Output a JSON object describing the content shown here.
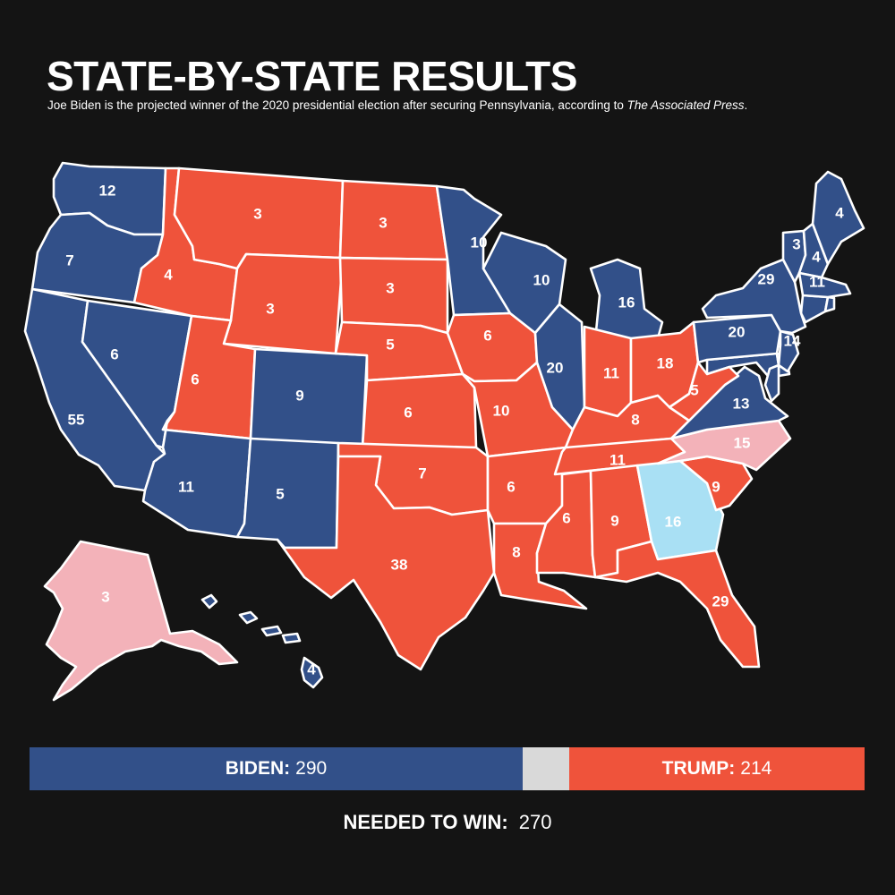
{
  "title": "STATE-BY-STATE RESULTS",
  "subtitle": {
    "text": "Joe Biden is the projected winner of the 2020 presidential election after securing Pennsylvania, according to ",
    "source": "The Associated Press",
    "end": "."
  },
  "colors": {
    "biden": "#325089",
    "trump": "#ef533b",
    "lean_trump": "#f3b2b9",
    "lean_biden": "#a9e0f4",
    "undecided": "#d9d9d9",
    "background": "#141414"
  },
  "states": [
    {
      "id": "WA",
      "ev": "12",
      "party": "biden"
    },
    {
      "id": "OR",
      "ev": "7",
      "party": "biden"
    },
    {
      "id": "CA",
      "ev": "55",
      "party": "biden"
    },
    {
      "id": "NV",
      "ev": "6",
      "party": "biden"
    },
    {
      "id": "ID",
      "ev": "4",
      "party": "trump"
    },
    {
      "id": "MT",
      "ev": "3",
      "party": "trump"
    },
    {
      "id": "WY",
      "ev": "3",
      "party": "trump"
    },
    {
      "id": "UT",
      "ev": "6",
      "party": "trump"
    },
    {
      "id": "AZ",
      "ev": "11",
      "party": "biden"
    },
    {
      "id": "CO",
      "ev": "9",
      "party": "biden"
    },
    {
      "id": "NM",
      "ev": "5",
      "party": "biden"
    },
    {
      "id": "ND",
      "ev": "3",
      "party": "trump"
    },
    {
      "id": "SD",
      "ev": "3",
      "party": "trump"
    },
    {
      "id": "NE",
      "ev": "5",
      "party": "trump"
    },
    {
      "id": "KS",
      "ev": "6",
      "party": "trump"
    },
    {
      "id": "OK",
      "ev": "7",
      "party": "trump"
    },
    {
      "id": "TX",
      "ev": "38",
      "party": "trump"
    },
    {
      "id": "MN",
      "ev": "10",
      "party": "biden"
    },
    {
      "id": "IA",
      "ev": "6",
      "party": "trump"
    },
    {
      "id": "MO",
      "ev": "10",
      "party": "trump"
    },
    {
      "id": "AR",
      "ev": "6",
      "party": "trump"
    },
    {
      "id": "LA",
      "ev": "8",
      "party": "trump"
    },
    {
      "id": "WI",
      "ev": "10",
      "party": "biden"
    },
    {
      "id": "IL",
      "ev": "20",
      "party": "biden"
    },
    {
      "id": "MI",
      "ev": "16",
      "party": "biden"
    },
    {
      "id": "IN",
      "ev": "11",
      "party": "trump"
    },
    {
      "id": "OH",
      "ev": "18",
      "party": "trump"
    },
    {
      "id": "KY",
      "ev": "8",
      "party": "trump"
    },
    {
      "id": "TN",
      "ev": "11",
      "party": "trump"
    },
    {
      "id": "MS",
      "ev": "6",
      "party": "trump"
    },
    {
      "id": "AL",
      "ev": "9",
      "party": "trump"
    },
    {
      "id": "GA",
      "ev": "16",
      "party": "lean_biden"
    },
    {
      "id": "FL",
      "ev": "29",
      "party": "trump"
    },
    {
      "id": "SC",
      "ev": "9",
      "party": "trump"
    },
    {
      "id": "NC",
      "ev": "15",
      "party": "lean_trump"
    },
    {
      "id": "VA",
      "ev": "13",
      "party": "biden"
    },
    {
      "id": "WV",
      "ev": "5",
      "party": "trump"
    },
    {
      "id": "PA",
      "ev": "20",
      "party": "biden"
    },
    {
      "id": "NY",
      "ev": "29",
      "party": "biden"
    },
    {
      "id": "VT",
      "ev": "3",
      "party": "biden"
    },
    {
      "id": "NH",
      "ev": "4",
      "party": "biden"
    },
    {
      "id": "ME",
      "ev": "4",
      "party": "biden"
    },
    {
      "id": "MA",
      "ev": "11",
      "party": "biden"
    },
    {
      "id": "NJ",
      "ev": "14",
      "party": "biden"
    },
    {
      "id": "AK",
      "ev": "3",
      "party": "lean_trump"
    },
    {
      "id": "HI",
      "ev": "4",
      "party": "biden"
    }
  ],
  "tally": {
    "biden_label": "BIDEN:",
    "biden_votes": "290",
    "trump_label": "TRUMP:",
    "trump_votes": "214",
    "biden_share": 0.5906,
    "undecided_share": 0.0555,
    "trump_share": 0.3539
  },
  "needed": {
    "label": "NEEDED TO WIN:",
    "value": "270"
  }
}
